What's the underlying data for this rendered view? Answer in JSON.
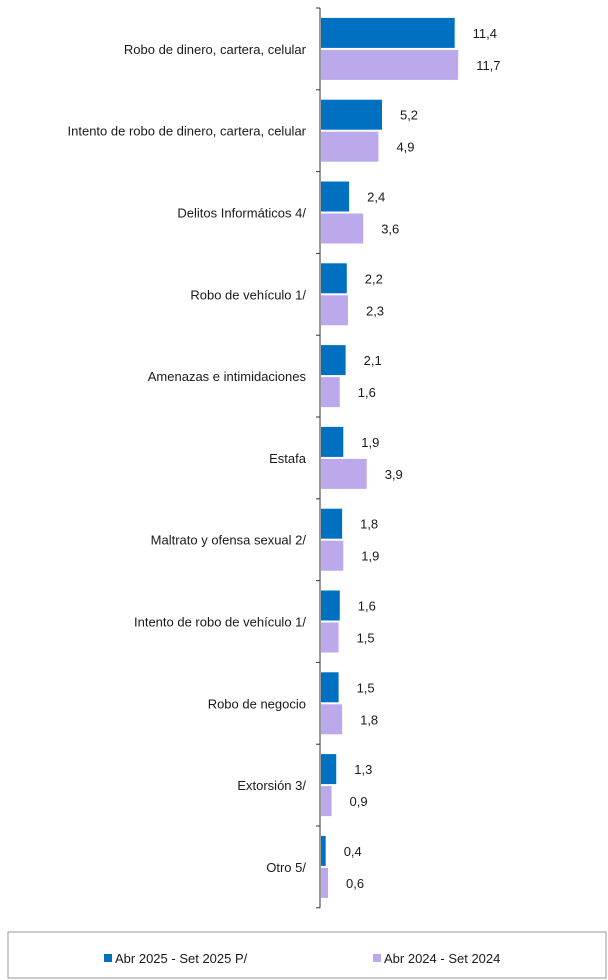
{
  "chart_data": {
    "type": "bar",
    "orientation": "horizontal",
    "categories": [
      "Robo de dinero, cartera, celular",
      "Intento de robo de dinero, cartera, celular",
      "Delitos Informáticos 4/",
      "Robo  de vehículo 1/",
      "Amenazas e intimidaciones",
      "Estafa",
      "Maltrato y ofensa sexual 2/",
      "Intento de robo de vehículo 1/",
      "Robo de negocio",
      "Extorsión 3/",
      "Otro 5/"
    ],
    "series": [
      {
        "name": "Abr 2025 - Set 2025 P/",
        "color": "#0070c0",
        "values": [
          11.4,
          5.2,
          2.4,
          2.2,
          2.1,
          1.9,
          1.8,
          1.6,
          1.5,
          1.3,
          0.4
        ],
        "labels": [
          "11,4",
          "5,2",
          "2,4",
          "2,2",
          "2,1",
          "1,9",
          "1,8",
          "1,6",
          "1,5",
          "1,3",
          "0,4"
        ]
      },
      {
        "name": "Abr 2024 - Set 2024",
        "color": "#bca9ec",
        "values": [
          11.7,
          4.9,
          3.6,
          2.3,
          1.6,
          3.9,
          1.9,
          1.5,
          1.8,
          0.9,
          0.6
        ],
        "labels": [
          "11,7",
          "4,9",
          "3,6",
          "2,3",
          "1,6",
          "3,9",
          "1,9",
          "1,5",
          "1,8",
          "0,9",
          "0,6"
        ]
      }
    ],
    "xlim": [
      0,
      12
    ],
    "grid": false,
    "legend_position": "bottom"
  }
}
